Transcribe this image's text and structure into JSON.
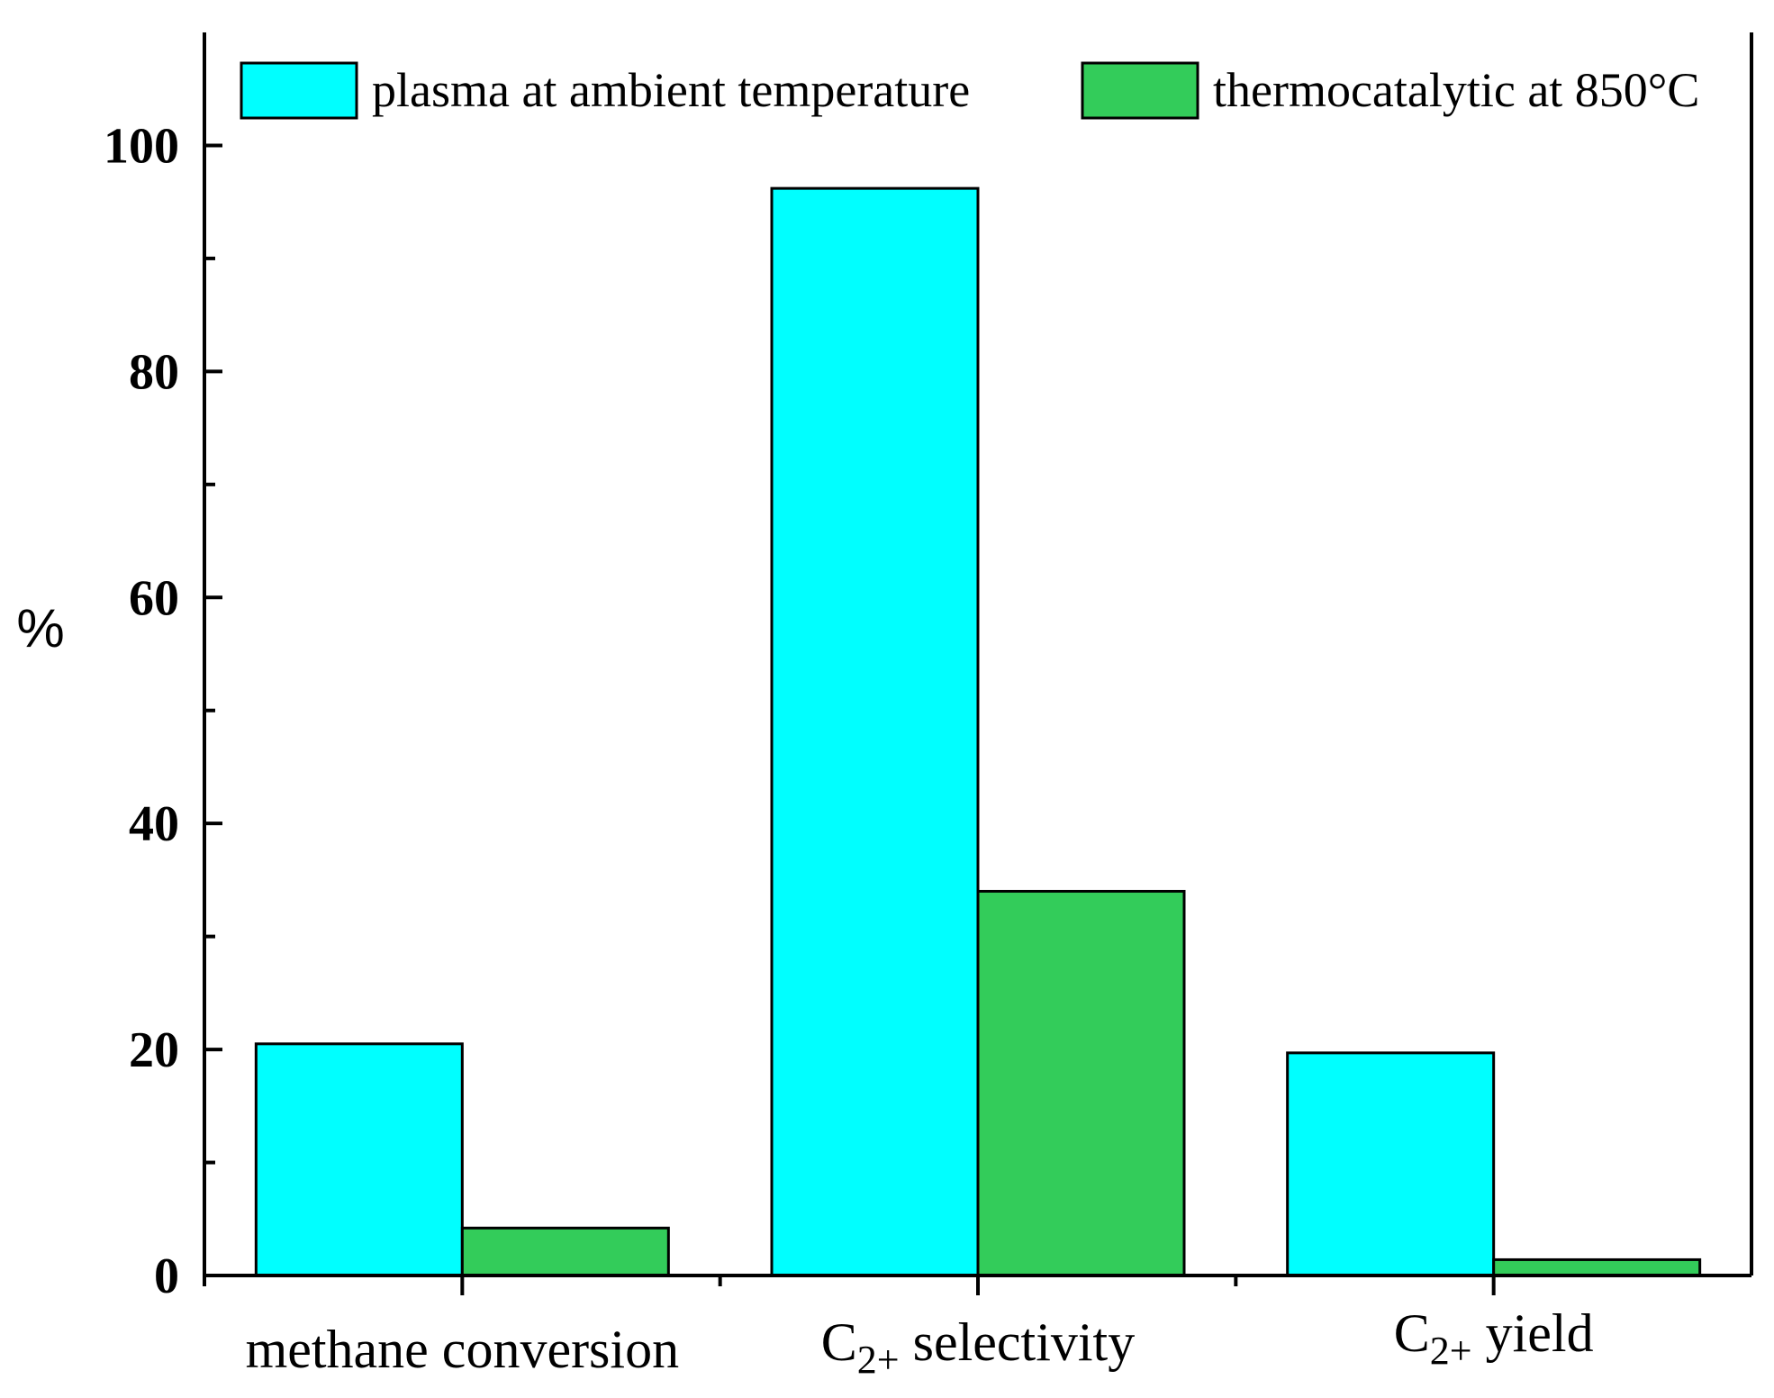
{
  "chart_data": {
    "type": "bar",
    "title": "",
    "xlabel": "",
    "ylabel": "%",
    "ylim": [
      0,
      110
    ],
    "yticks": [
      0,
      20,
      40,
      60,
      80,
      100
    ],
    "grid": false,
    "legend_position": "top",
    "categories": [
      {
        "label": "methane conversion",
        "base": "methane conversion",
        "sub": "",
        "rest": ""
      },
      {
        "label": "C2+ selectivity",
        "base": "C",
        "sub": "2+",
        "rest": " selectivity"
      },
      {
        "label": "C2+ yield",
        "base": "C",
        "sub": "2+",
        "rest": " yield"
      }
    ],
    "series": [
      {
        "name": "plasma at ambient temperature",
        "color": "#00FFFF",
        "values": [
          20.5,
          96.2,
          19.7
        ]
      },
      {
        "name": "thermocatalytic at 850°C",
        "color": "#33CC5A",
        "values": [
          4.2,
          34.0,
          1.4
        ]
      }
    ]
  }
}
